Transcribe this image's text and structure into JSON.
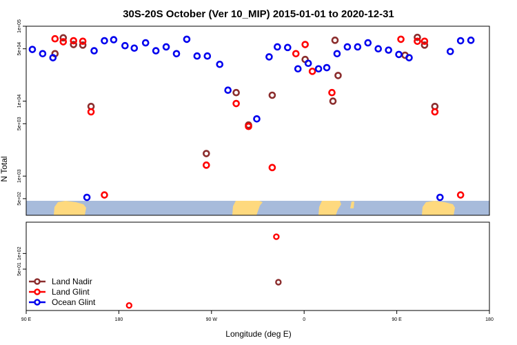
{
  "chart_data": {
    "type": "scatter",
    "title": "30S-20S October (Ver 10_MIP)   2015-01-01 to 2020-12-31",
    "xlabel": "Longitude (deg E)",
    "ylabel": "N Total",
    "x_ticks": [
      {
        "value": 90,
        "label": "90 E"
      },
      {
        "value": 180,
        "label": "180"
      },
      {
        "value": 270,
        "label": "90 W"
      },
      {
        "value": 360,
        "label": "0"
      },
      {
        "value": 450,
        "label": "90 E"
      },
      {
        "value": 540,
        "label": "180"
      }
    ],
    "xlim": [
      90,
      540
    ],
    "top_panel": {
      "yscale": "log",
      "ylim": [
        300,
        100000
      ],
      "y_ticks": [
        {
          "value": 100000,
          "label": "1e+05"
        },
        {
          "value": 50000,
          "label": "5e+04"
        },
        {
          "value": 10000,
          "label": "1e+04"
        },
        {
          "value": 5000,
          "label": "5e+03"
        },
        {
          "value": 1000,
          "label": "1e+03"
        },
        {
          "value": 500,
          "label": "5e+02"
        }
      ]
    },
    "bottom_panel": {
      "yscale": "log",
      "ylim": [
        8,
        400
      ],
      "y_ticks": [
        {
          "value": 100,
          "label": "1e+02"
        },
        {
          "value": 50,
          "label": "5e+01"
        }
      ]
    },
    "legend": {
      "position": "bottom-left",
      "entries": [
        {
          "label": "Land Nadir",
          "color": "#8b2d2d"
        },
        {
          "label": "Land Glint",
          "color": "#ff0000"
        },
        {
          "label": "Ocean Glint",
          "color": "#0000ee"
        }
      ]
    },
    "series": [
      {
        "name": "Land Nadir",
        "color": "#8b2d2d",
        "points_top": [
          [
            118,
            43000
          ],
          [
            126,
            70000
          ],
          [
            136,
            57000
          ],
          [
            145,
            56000
          ],
          [
            153,
            8500
          ],
          [
            265,
            2000
          ],
          [
            294,
            13000
          ],
          [
            306,
            4800
          ],
          [
            329,
            12000
          ],
          [
            361,
            36000
          ],
          [
            390,
            65000
          ],
          [
            393,
            22000
          ],
          [
            388,
            10000
          ],
          [
            458,
            41000
          ],
          [
            470,
            71000
          ],
          [
            477,
            56000
          ],
          [
            487,
            8500
          ]
        ],
        "points_bottom": [
          [
            335,
            28
          ]
        ]
      },
      {
        "name": "Land Glint",
        "color": "#ff0000",
        "points_top": [
          [
            118,
            68000
          ],
          [
            126,
            62000
          ],
          [
            136,
            64000
          ],
          [
            145,
            63000
          ],
          [
            153,
            7200
          ],
          [
            166,
            560
          ],
          [
            265,
            1400
          ],
          [
            294,
            9300
          ],
          [
            306,
            4600
          ],
          [
            329,
            1300
          ],
          [
            352,
            43000
          ],
          [
            361,
            57000
          ],
          [
            368,
            25000
          ],
          [
            387,
            13000
          ],
          [
            454,
            67000
          ],
          [
            470,
            63000
          ],
          [
            477,
            63000
          ],
          [
            487,
            7200
          ],
          [
            512,
            560
          ]
        ],
        "points_bottom": [
          [
            190,
            10
          ],
          [
            333,
            210
          ]
        ]
      },
      {
        "name": "Ocean Glint",
        "color": "#0000ee",
        "points_top": [
          [
            96,
            49000
          ],
          [
            106,
            43000
          ],
          [
            116,
            38000
          ],
          [
            149,
            520
          ],
          [
            156,
            47000
          ],
          [
            166,
            64000
          ],
          [
            175,
            66000
          ],
          [
            186,
            55000
          ],
          [
            195,
            51000
          ],
          [
            206,
            60000
          ],
          [
            216,
            47000
          ],
          [
            226,
            53000
          ],
          [
            236,
            43000
          ],
          [
            246,
            67000
          ],
          [
            256,
            40000
          ],
          [
            266,
            40000
          ],
          [
            278,
            31000
          ],
          [
            286,
            14000
          ],
          [
            314,
            5800
          ],
          [
            326,
            39000
          ],
          [
            334,
            53000
          ],
          [
            344,
            52000
          ],
          [
            354,
            27000
          ],
          [
            364,
            32000
          ],
          [
            374,
            27000
          ],
          [
            382,
            28000
          ],
          [
            392,
            43000
          ],
          [
            402,
            53000
          ],
          [
            412,
            53000
          ],
          [
            422,
            60000
          ],
          [
            432,
            50000
          ],
          [
            442,
            48000
          ],
          [
            452,
            42000
          ],
          [
            462,
            38000
          ],
          [
            492,
            520
          ],
          [
            502,
            46000
          ],
          [
            512,
            64000
          ],
          [
            522,
            65000
          ]
        ],
        "points_bottom": []
      }
    ]
  }
}
